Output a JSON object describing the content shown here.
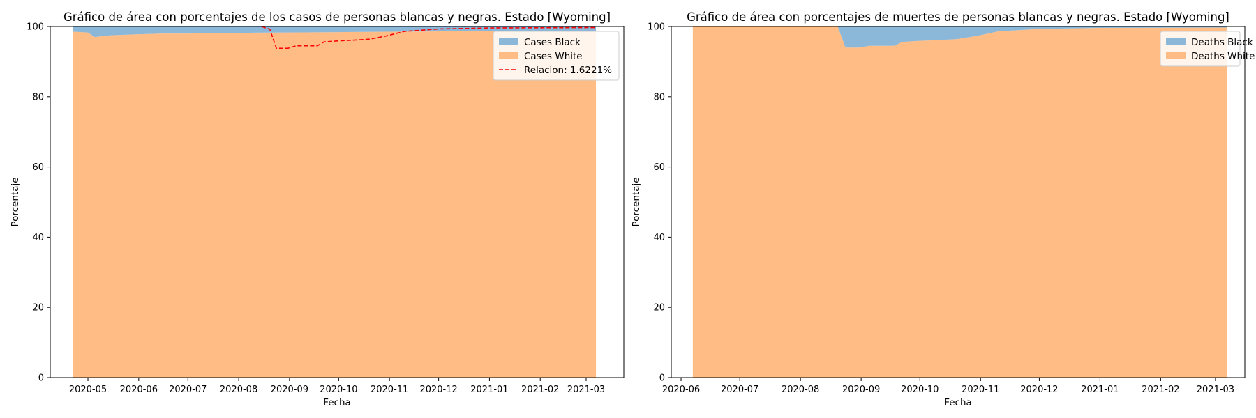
{
  "colors": {
    "black_area": "#8bb8d9",
    "white_area": "#ffbc85",
    "ratio_line": "#ff0000"
  },
  "chart_data": [
    {
      "type": "area",
      "stacked": true,
      "title": "Gráfico de área con porcentajes de los casos de personas blancas y negras. Estado [Wyoming]",
      "xlabel": "Fecha",
      "ylabel": "Porcentaje",
      "xlim": [
        "2020-04-08",
        "2021-03-24"
      ],
      "ylim": [
        0,
        100
      ],
      "xticks": [
        "2020-05",
        "2020-06",
        "2020-07",
        "2020-08",
        "2020-09",
        "2020-10",
        "2020-11",
        "2020-12",
        "2021-01",
        "2021-02",
        "2021-03"
      ],
      "yticks": [
        0,
        20,
        40,
        60,
        80,
        100
      ],
      "legend": "top-right",
      "x": [
        "2020-04-22",
        "2020-05-01",
        "2020-05-05",
        "2020-05-15",
        "2020-06-01",
        "2020-06-15",
        "2020-07-01",
        "2020-08-01",
        "2020-09-01",
        "2020-10-01",
        "2020-11-01",
        "2020-12-01",
        "2021-01-01",
        "2021-02-01",
        "2021-03-07"
      ],
      "series": [
        {
          "name": "Cases White",
          "values": [
            98.5,
            98.3,
            97.0,
            97.5,
            97.8,
            98.0,
            98.0,
            98.2,
            98.3,
            98.4,
            98.5,
            98.6,
            98.7,
            98.8,
            98.8
          ]
        },
        {
          "name": "Cases Black",
          "values": [
            1.5,
            1.7,
            3.0,
            2.5,
            2.2,
            2.0,
            2.0,
            1.8,
            1.7,
            1.6,
            1.5,
            1.4,
            1.3,
            1.2,
            1.2
          ]
        }
      ],
      "ratio": {
        "name": "Relacion: 1.6221%",
        "x": [
          "2020-08-15",
          "2020-08-20",
          "2020-08-24",
          "2020-08-31",
          "2020-09-05",
          "2020-09-12",
          "2020-09-18",
          "2020-09-22",
          "2020-10-01",
          "2020-10-10",
          "2020-10-20",
          "2020-10-30",
          "2020-11-10",
          "2020-12-01",
          "2021-01-01",
          "2021-03-07"
        ],
        "values": [
          100,
          99.2,
          93.8,
          93.8,
          94.5,
          94.5,
          94.5,
          95.6,
          95.9,
          96.1,
          96.4,
          97.3,
          98.6,
          99.3,
          99.6,
          99.7
        ]
      }
    },
    {
      "type": "area",
      "stacked": true,
      "title": "Gráfico de área con porcentajes de muertes de personas blancas y negras. Estado [Wyoming]",
      "xlabel": "Fecha",
      "ylabel": "Porcentaje",
      "xlim": [
        "2020-05-27",
        "2021-03-16"
      ],
      "ylim": [
        0,
        100
      ],
      "xticks": [
        "2020-06",
        "2020-07",
        "2020-08",
        "2020-09",
        "2020-10",
        "2020-11",
        "2020-12",
        "2021-01",
        "2021-02",
        "2021-03"
      ],
      "yticks": [
        0,
        20,
        40,
        60,
        80,
        100
      ],
      "legend": "top-right",
      "x": [
        "2020-06-07",
        "2020-08-20",
        "2020-08-24",
        "2020-08-31",
        "2020-09-05",
        "2020-09-12",
        "2020-09-18",
        "2020-09-22",
        "2020-10-01",
        "2020-10-10",
        "2020-10-20",
        "2020-10-30",
        "2020-11-10",
        "2020-12-01",
        "2021-01-01",
        "2021-03-07"
      ],
      "series": [
        {
          "name": "Deaths White",
          "values": [
            100,
            100,
            94.0,
            94.0,
            94.5,
            94.5,
            94.5,
            95.6,
            95.9,
            96.1,
            96.4,
            97.3,
            98.6,
            99.3,
            99.6,
            99.7
          ]
        },
        {
          "name": "Deaths Black",
          "values": [
            0,
            0,
            6.0,
            6.0,
            5.5,
            5.5,
            5.5,
            4.4,
            4.1,
            3.9,
            3.6,
            2.7,
            1.4,
            0.7,
            0.4,
            0.3
          ]
        }
      ]
    }
  ]
}
